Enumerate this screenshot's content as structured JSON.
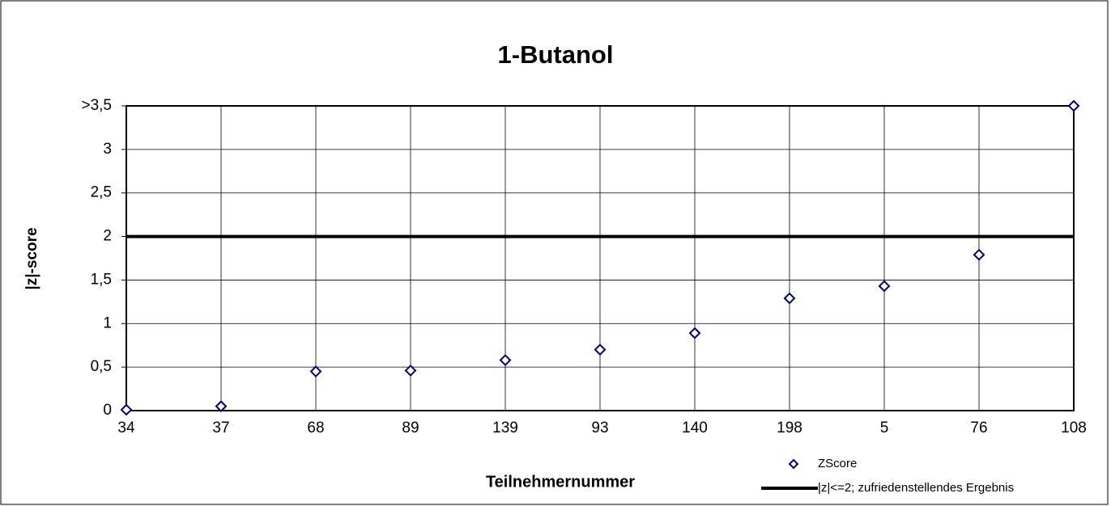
{
  "chart_data": {
    "type": "scatter",
    "title": "1-Butanol",
    "x_label": "Teilnehmernummer",
    "y_label": "|z|-score",
    "categories": [
      "34",
      "37",
      "68",
      "89",
      "139",
      "93",
      "140",
      "198",
      "5",
      "76",
      "108"
    ],
    "series": [
      {
        "name": "ZScore",
        "color": "#000080",
        "values": [
          0.01,
          0.05,
          0.45,
          0.46,
          0.58,
          0.7,
          0.89,
          1.29,
          1.43,
          1.79,
          3.5
        ]
      }
    ],
    "threshold": {
      "name": "|z|<=2; zufriedenstellendes Ergebnis",
      "value": 2,
      "color": "#000000"
    },
    "ylim": [
      0,
      3.5
    ],
    "yticks": [
      0,
      {
        "value": 0.5,
        "label": "0,5"
      },
      1,
      {
        "value": 1.5,
        "label": "1,5"
      },
      2,
      {
        "value": 2.5,
        "label": "2,5"
      },
      3,
      {
        "value": 3.5,
        "label": ">3,5"
      }
    ],
    "grid": true
  }
}
